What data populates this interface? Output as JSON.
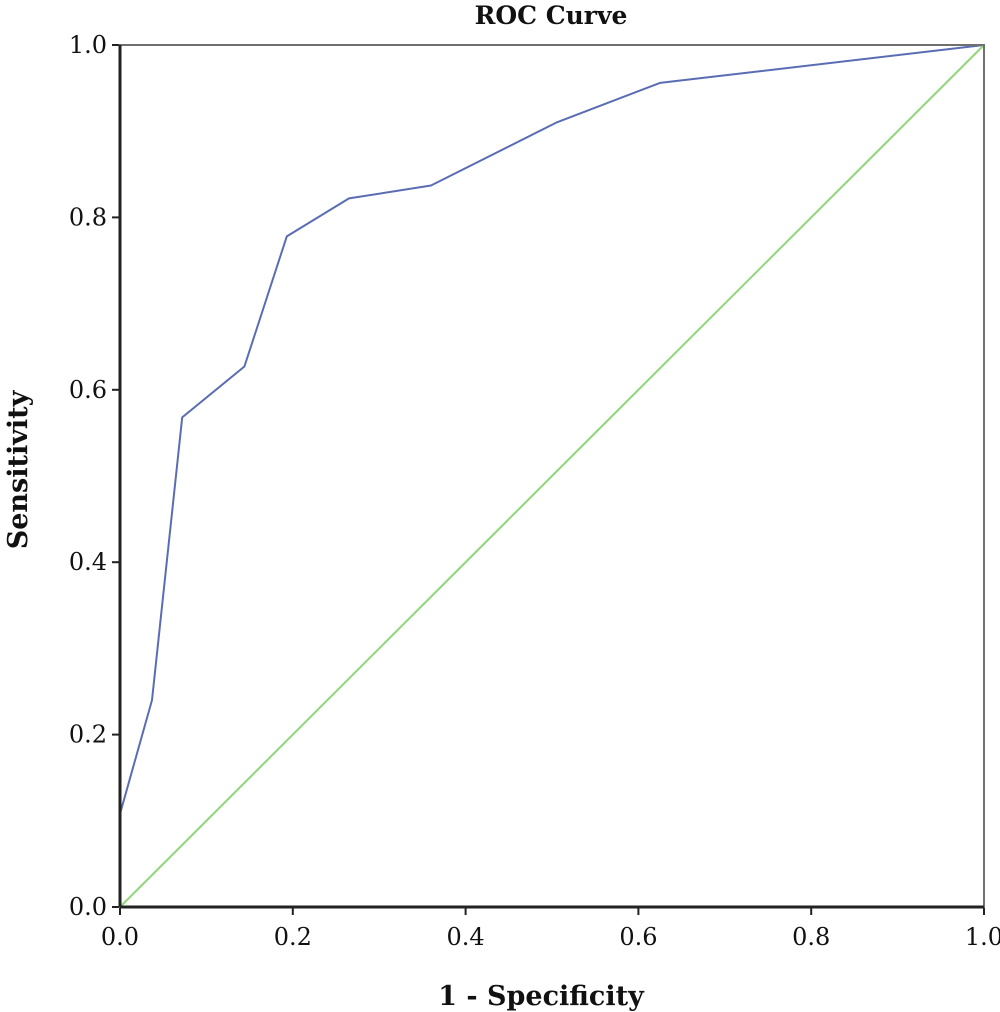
{
  "chart_data": {
    "type": "line",
    "title": "ROC Curve",
    "xlabel": "1 - Specificity",
    "ylabel": "Sensitivity",
    "xlim": [
      0,
      1
    ],
    "ylim": [
      0,
      1
    ],
    "xticks": [
      "0.0",
      "0.2",
      "0.4",
      "0.6",
      "0.8",
      "1.0"
    ],
    "yticks": [
      "0.0",
      "0.2",
      "0.4",
      "0.6",
      "0.8",
      "1.0"
    ],
    "grid": false,
    "series": [
      {
        "color": "#5a6db4",
        "x": [
          0.0,
          0.0,
          0.037,
          0.072,
          0.144,
          0.193,
          0.265,
          0.36,
          0.505,
          0.625,
          1.0
        ],
        "y": [
          0.0,
          0.108,
          0.24,
          0.568,
          0.627,
          0.778,
          0.822,
          0.837,
          0.91,
          0.956,
          1.0
        ]
      },
      {
        "color": "#8fd67a",
        "x": [
          0.0,
          1.0
        ],
        "y": [
          0.0,
          1.0
        ]
      }
    ]
  }
}
